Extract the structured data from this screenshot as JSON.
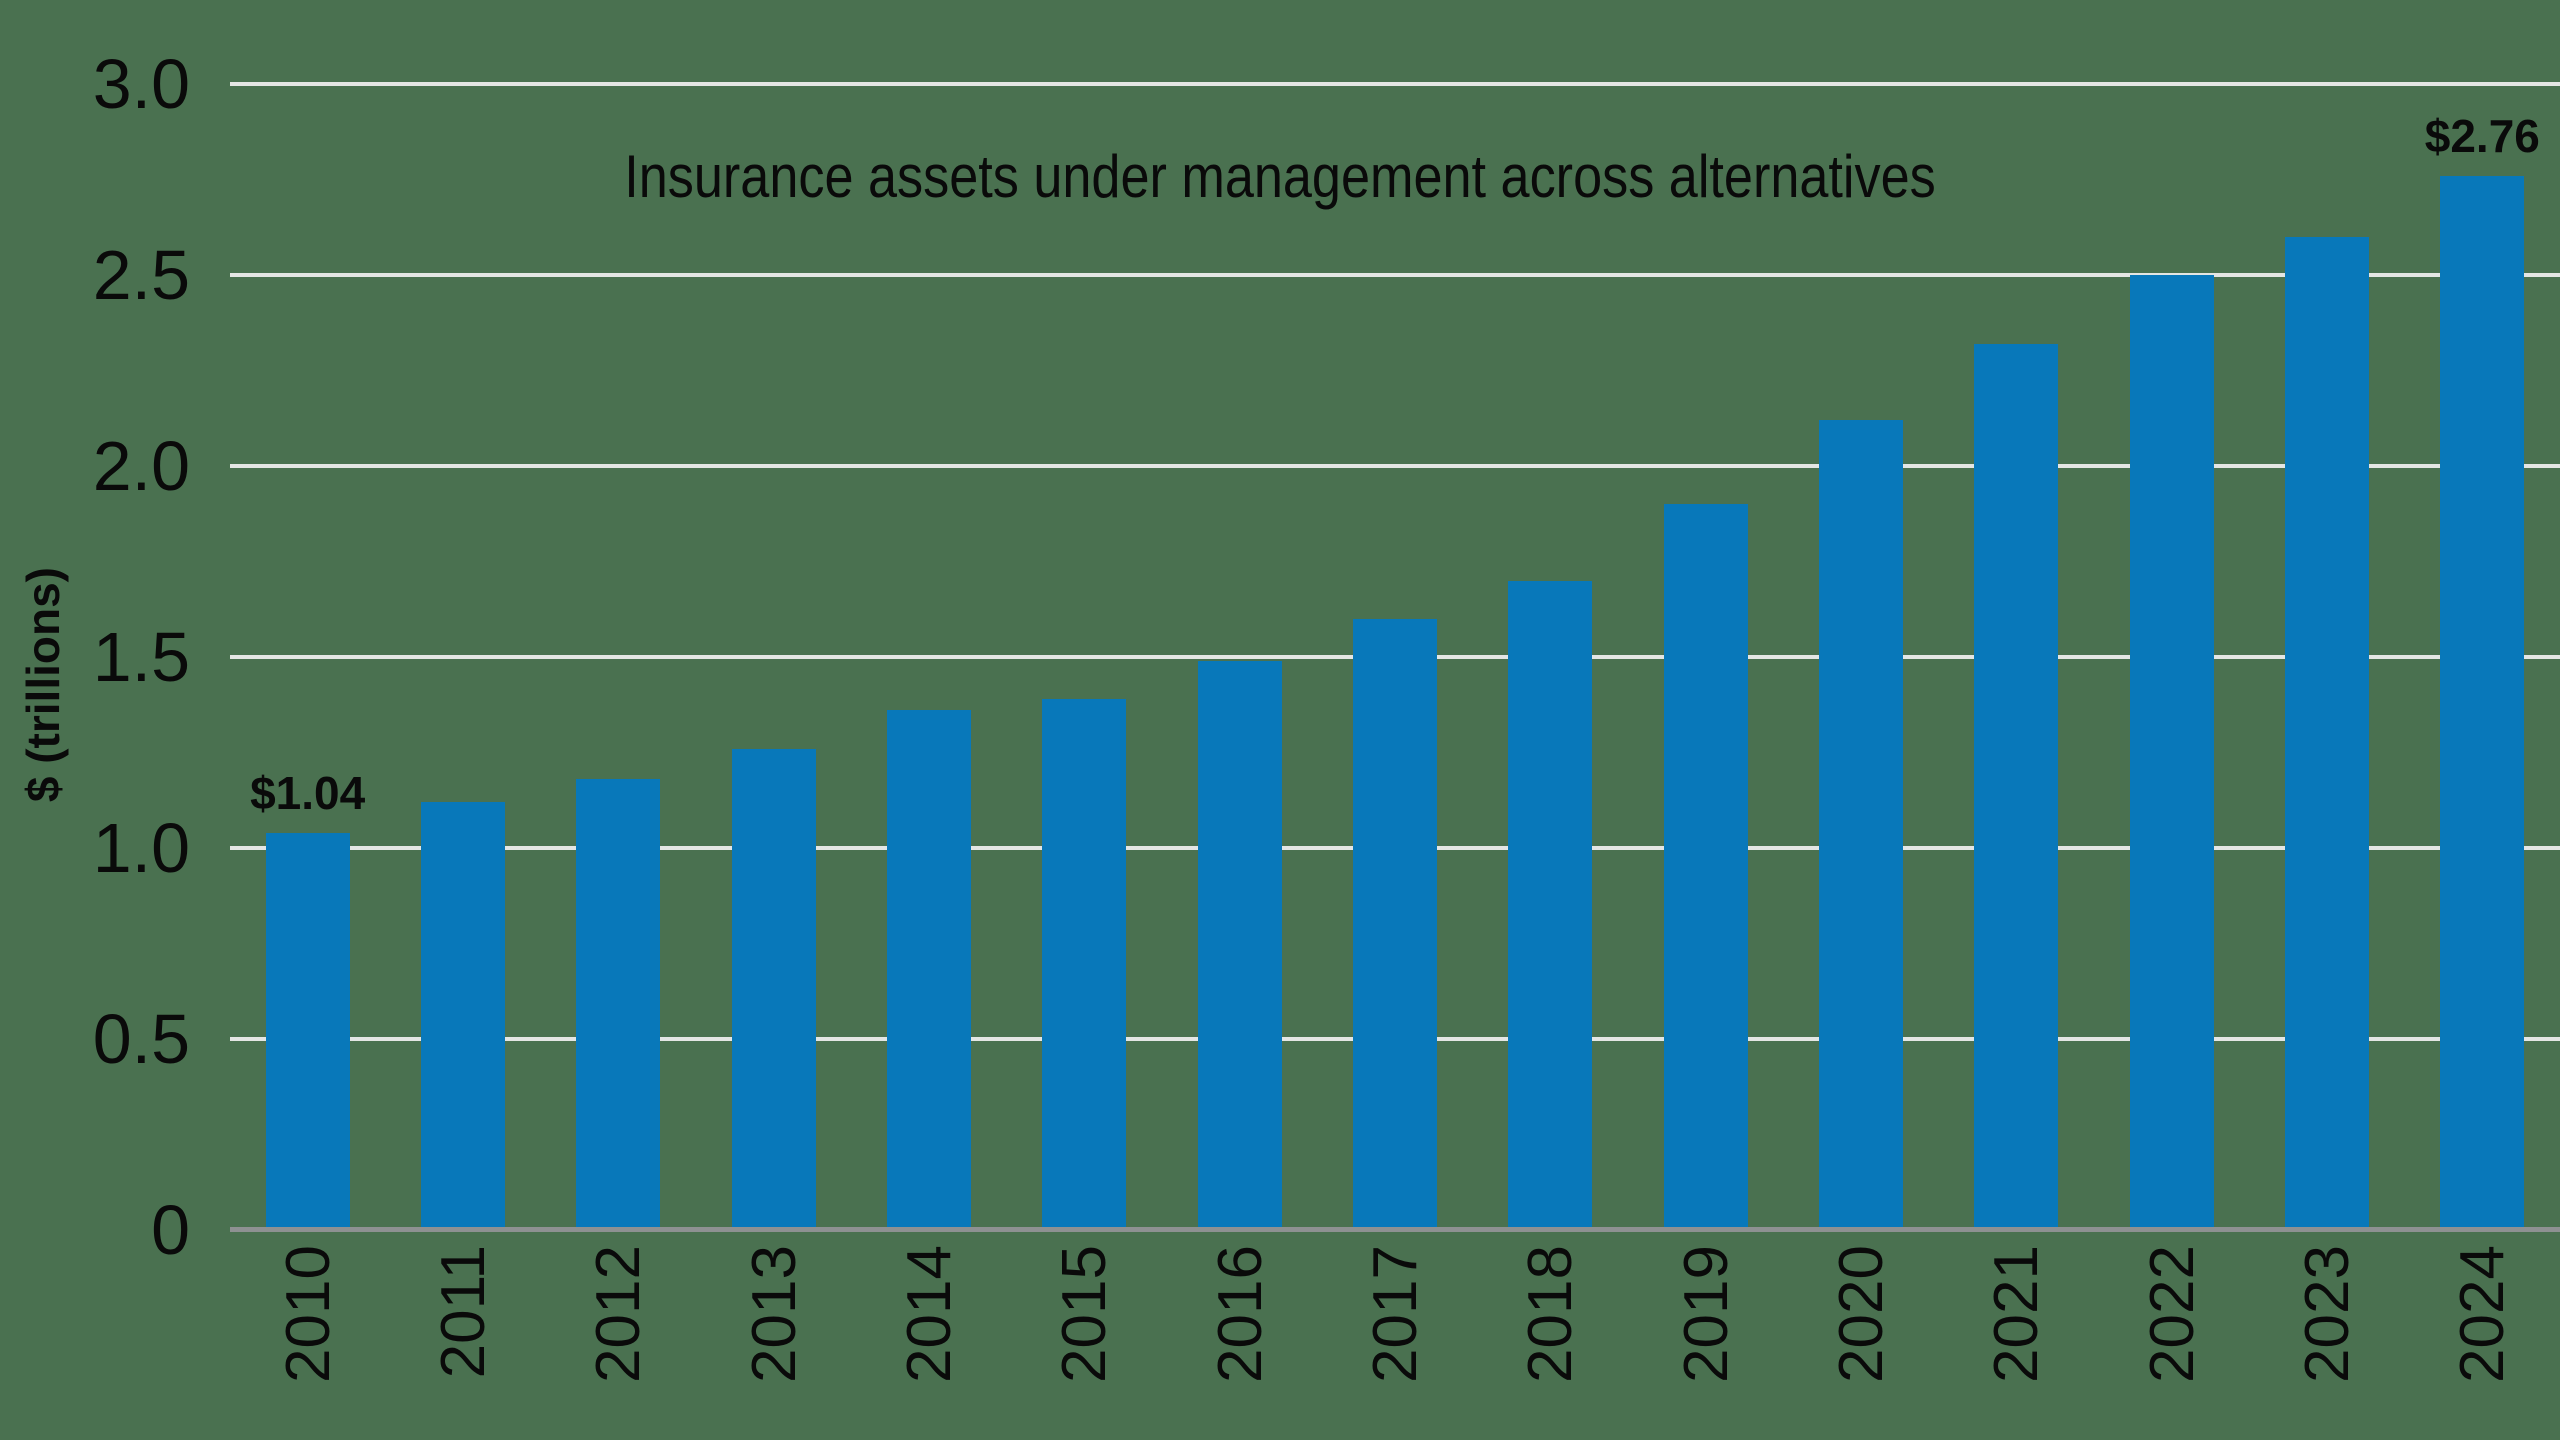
{
  "chart_data": {
    "type": "bar",
    "title": "Insurance assets under management across alternatives",
    "ylabel": "$ (trillions)",
    "categories": [
      "2010",
      "2011",
      "2012",
      "2013",
      "2014",
      "2015",
      "2016",
      "2017",
      "2018",
      "2019",
      "2020",
      "2021",
      "2022",
      "2023",
      "2024"
    ],
    "values": [
      1.04,
      1.12,
      1.18,
      1.26,
      1.36,
      1.39,
      1.49,
      1.6,
      1.7,
      1.9,
      2.12,
      2.32,
      2.5,
      2.6,
      2.76
    ],
    "bar_labels": {
      "2010": "$1.04",
      "2024": "$2.76"
    },
    "ylim": [
      0,
      3.0
    ],
    "yticks": [
      "3.0",
      "2.5",
      "2.0",
      "1.5",
      "1.0",
      "0.5",
      "0"
    ],
    "ytick_values": [
      3.0,
      2.5,
      2.0,
      1.5,
      1.0,
      0.5,
      0
    ],
    "grid": "horizontal gridlines on",
    "legend": "none",
    "colors": {
      "background": "#4a7150",
      "bar": "#0878ba",
      "gridline": "#e4e6e4",
      "axis_line": "#8e9192",
      "text": "#0a0a0a"
    }
  }
}
